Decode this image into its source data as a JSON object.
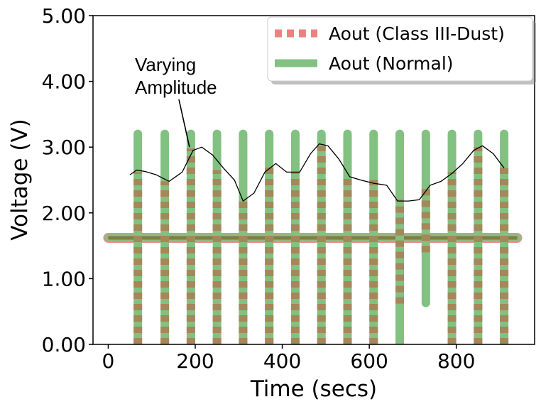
{
  "chart_data": {
    "type": "line",
    "xlabel": "Time (secs)",
    "ylabel": "Voltage (V)",
    "xlim": [
      -35,
      980
    ],
    "ylim": [
      0,
      5
    ],
    "xticks": [
      0,
      200,
      400,
      600,
      800
    ],
    "yticks": [
      "0.00",
      "1.00",
      "2.00",
      "3.00",
      "4.00",
      "5.00"
    ],
    "legend": {
      "placement": "top-right"
    },
    "baseline": 1.62,
    "x_range": [
      0,
      940
    ],
    "series": [
      {
        "name": "Aout (Normal)",
        "color": "#82c181",
        "style": "solid",
        "spikes": [
          {
            "x": 68,
            "min": 0,
            "max": 3.2
          },
          {
            "x": 130,
            "min": 0,
            "max": 3.2
          },
          {
            "x": 190,
            "min": 0,
            "max": 3.2
          },
          {
            "x": 250,
            "min": 0,
            "max": 3.2
          },
          {
            "x": 310,
            "min": 0,
            "max": 3.2
          },
          {
            "x": 370,
            "min": 0,
            "max": 3.2
          },
          {
            "x": 430,
            "min": 0,
            "max": 3.2
          },
          {
            "x": 490,
            "min": 0,
            "max": 3.2
          },
          {
            "x": 550,
            "min": 0,
            "max": 3.2
          },
          {
            "x": 610,
            "min": 0,
            "max": 3.2
          },
          {
            "x": 670,
            "min": 0,
            "max": 3.2
          },
          {
            "x": 730,
            "min": 0.63,
            "max": 3.2
          },
          {
            "x": 790,
            "min": 0,
            "max": 3.2
          },
          {
            "x": 850,
            "min": 0,
            "max": 3.2
          },
          {
            "x": 910,
            "min": 0,
            "max": 3.2
          }
        ]
      },
      {
        "name": "Aout (Class III-Dust)",
        "color": "#f08080",
        "style": "dashed",
        "spikes": [
          {
            "x": 68,
            "min": 0,
            "max": 2.62
          },
          {
            "x": 130,
            "min": 0,
            "max": 2.48
          },
          {
            "x": 190,
            "min": 0,
            "max": 2.98
          },
          {
            "x": 250,
            "min": 0,
            "max": 2.65
          },
          {
            "x": 310,
            "min": 0,
            "max": 2.2
          },
          {
            "x": 370,
            "min": 0,
            "max": 2.72
          },
          {
            "x": 430,
            "min": 0,
            "max": 2.62
          },
          {
            "x": 490,
            "min": 0,
            "max": 3.02
          },
          {
            "x": 550,
            "min": 0,
            "max": 2.55
          },
          {
            "x": 610,
            "min": 0,
            "max": 2.5
          },
          {
            "x": 670,
            "min": 0.62,
            "max": 2.2
          },
          {
            "x": 730,
            "min": 1.4,
            "max": 2.4
          },
          {
            "x": 790,
            "min": 0,
            "max": 2.62
          },
          {
            "x": 850,
            "min": 0,
            "max": 3.0
          },
          {
            "x": 910,
            "min": 0,
            "max": 2.68
          }
        ]
      }
    ],
    "envelope": {
      "color": "#000000",
      "x": [
        50,
        65,
        85,
        110,
        140,
        170,
        195,
        215,
        240,
        265,
        290,
        310,
        335,
        360,
        385,
        410,
        440,
        465,
        485,
        505,
        530,
        555,
        580,
        610,
        640,
        665,
        690,
        715,
        740,
        765,
        790,
        815,
        840,
        860,
        885,
        910
      ],
      "y": [
        2.58,
        2.65,
        2.63,
        2.58,
        2.48,
        2.62,
        2.95,
        3.0,
        2.88,
        2.68,
        2.5,
        2.18,
        2.3,
        2.62,
        2.75,
        2.62,
        2.62,
        2.9,
        3.05,
        3.02,
        2.82,
        2.55,
        2.5,
        2.45,
        2.42,
        2.18,
        2.18,
        2.2,
        2.42,
        2.48,
        2.6,
        2.75,
        2.95,
        3.02,
        2.9,
        2.68
      ]
    },
    "annotations": [
      {
        "text_lines": [
          "Varying",
          "Amplitude"
        ],
        "arrow_to": [
          190,
          2.98
        ]
      }
    ]
  }
}
